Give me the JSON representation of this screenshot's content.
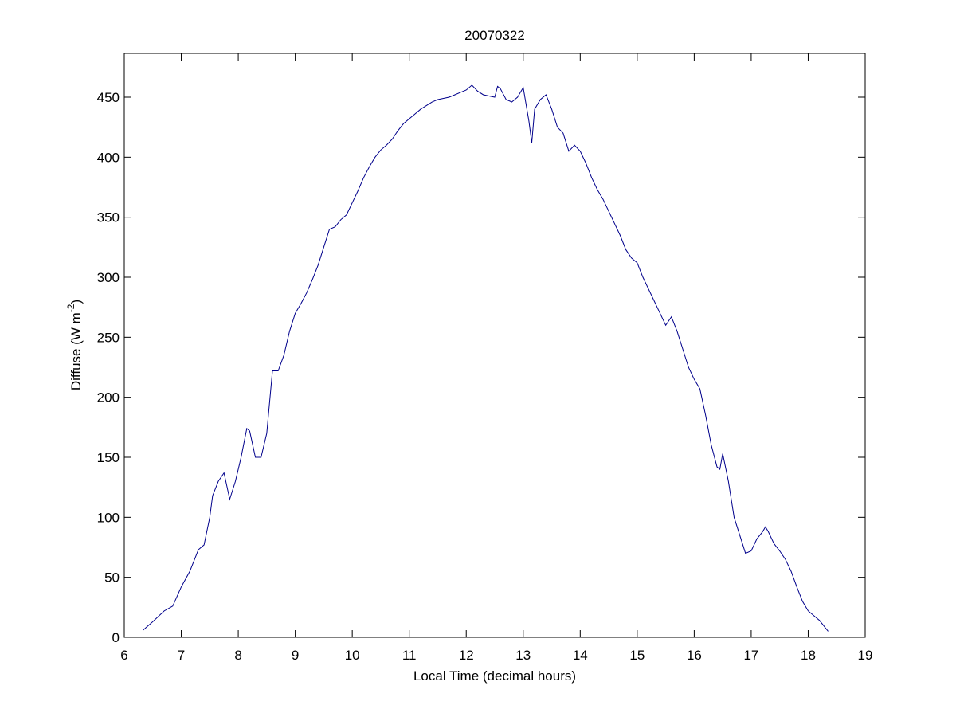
{
  "chart_data": {
    "type": "line",
    "title": "20070322",
    "xlabel": "Local Time (decimal hours)",
    "ylabel": [
      "Diffuse (W m",
      "-2",
      ")"
    ],
    "color": "#00008b",
    "xlim": [
      6,
      19
    ],
    "xticks": [
      6,
      7,
      8,
      9,
      10,
      11,
      12,
      13,
      14,
      15,
      16,
      17,
      18,
      19
    ],
    "ylim": [
      0,
      486.5
    ],
    "yticks": [
      0,
      50,
      100,
      150,
      200,
      250,
      300,
      350,
      400,
      450
    ],
    "x": [
      6.33,
      6.5,
      6.7,
      6.85,
      7.0,
      7.15,
      7.3,
      7.4,
      7.5,
      7.55,
      7.65,
      7.75,
      7.85,
      7.95,
      8.05,
      8.15,
      8.2,
      8.3,
      8.4,
      8.5,
      8.6,
      8.7,
      8.8,
      8.9,
      9.0,
      9.1,
      9.2,
      9.3,
      9.4,
      9.5,
      9.6,
      9.7,
      9.8,
      9.9,
      10.0,
      10.1,
      10.2,
      10.3,
      10.4,
      10.5,
      10.6,
      10.7,
      10.8,
      10.9,
      11.0,
      11.1,
      11.2,
      11.3,
      11.4,
      11.5,
      11.6,
      11.7,
      11.8,
      11.9,
      12.0,
      12.1,
      12.2,
      12.3,
      12.4,
      12.5,
      12.55,
      12.6,
      12.7,
      12.8,
      12.9,
      13.0,
      13.1,
      13.15,
      13.2,
      13.3,
      13.4,
      13.5,
      13.6,
      13.7,
      13.8,
      13.9,
      14.0,
      14.1,
      14.2,
      14.3,
      14.4,
      14.5,
      14.6,
      14.7,
      14.8,
      14.9,
      15.0,
      15.1,
      15.2,
      15.3,
      15.4,
      15.5,
      15.6,
      15.7,
      15.8,
      15.9,
      16.0,
      16.1,
      16.2,
      16.3,
      16.4,
      16.45,
      16.5,
      16.6,
      16.7,
      16.8,
      16.9,
      17.0,
      17.1,
      17.2,
      17.25,
      17.3,
      17.4,
      17.5,
      17.6,
      17.7,
      17.8,
      17.9,
      18.0,
      18.1,
      18.2,
      18.3,
      18.35
    ],
    "values": [
      6,
      13,
      22,
      26,
      42,
      55,
      73,
      77,
      100,
      118,
      130,
      137,
      115,
      130,
      150,
      174,
      172,
      150,
      150,
      170,
      222,
      222,
      235,
      255,
      270,
      278,
      287,
      298,
      310,
      325,
      340,
      342,
      348,
      352,
      362,
      372,
      383,
      392,
      400,
      406,
      410,
      415,
      422,
      428,
      432,
      436,
      440,
      443,
      446,
      448,
      449,
      450,
      452,
      454,
      456,
      460,
      455,
      452,
      451,
      450,
      459,
      457,
      448,
      446,
      450,
      458,
      430,
      412,
      440,
      448,
      452,
      440,
      425,
      420,
      405,
      410,
      405,
      395,
      383,
      373,
      365,
      355,
      345,
      335,
      323,
      316,
      312,
      300,
      290,
      280,
      270,
      260,
      267,
      255,
      240,
      225,
      215,
      207,
      185,
      160,
      142,
      140,
      153,
      130,
      100,
      85,
      70,
      72,
      82,
      88,
      92,
      88,
      78,
      72,
      65,
      55,
      42,
      30,
      22,
      18,
      14,
      8,
      5
    ]
  }
}
